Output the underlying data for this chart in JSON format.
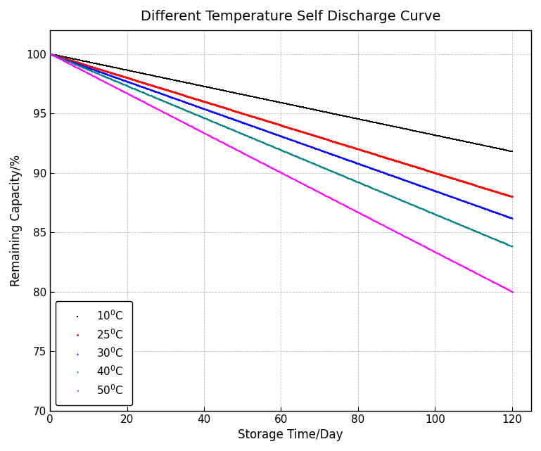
{
  "title": "Different Temperature Self Discharge Curve",
  "xlabel": "Storage Time/Day",
  "ylabel": "Remaining Capacity/%",
  "xlim": [
    0,
    125
  ],
  "ylim": [
    70,
    102
  ],
  "xticks": [
    0,
    20,
    40,
    60,
    80,
    100,
    120
  ],
  "yticks": [
    70,
    75,
    80,
    85,
    90,
    95,
    100
  ],
  "series": [
    {
      "label": "10$^0$C",
      "color": "black",
      "marker": "s",
      "end_value": 91.8
    },
    {
      "label": "25$^0$C",
      "color": "red",
      "marker": "o",
      "end_value": 88.0
    },
    {
      "label": "30$^0$C",
      "color": "blue",
      "marker": "^",
      "end_value": 86.2
    },
    {
      "label": "40$^0$C",
      "color": "#008080",
      "marker": "v",
      "end_value": 83.8
    },
    {
      "label": "50$^0$C",
      "color": "magenta",
      "marker": "<",
      "end_value": 80.0
    }
  ],
  "grid_color": "#bbbbbb",
  "background_color": "#ffffff",
  "title_fontsize": 14,
  "label_fontsize": 12,
  "tick_fontsize": 11,
  "legend_fontsize": 11
}
